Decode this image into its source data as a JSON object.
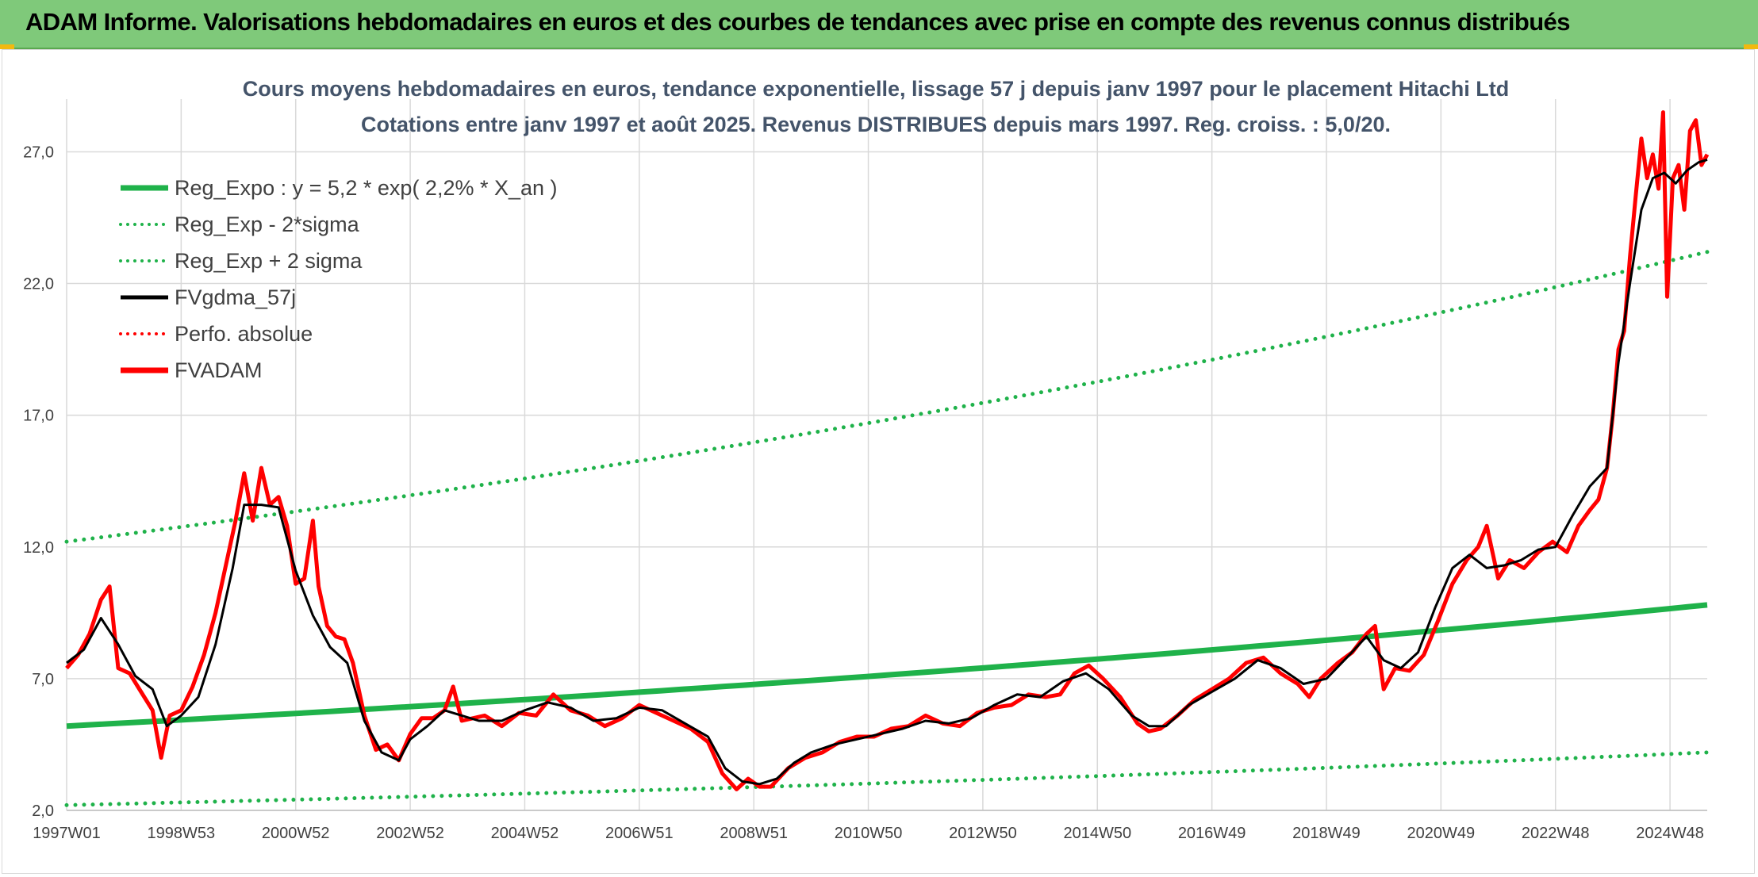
{
  "header": {
    "title": "ADAM Informe. Valorisations hebdomadaires en euros et des courbes de tendances avec prise en compte des revenus connus distribués"
  },
  "colors": {
    "banner": "#7fc97a",
    "reg_expo": "#1fb24a",
    "sigma": "#1fb24a",
    "fvgdma": "#000000",
    "perfo": "#ff0000",
    "fvadam": "#ff0000",
    "grid": "#d9d9d9"
  },
  "chart_data": {
    "type": "line",
    "title": "Cours moyens hebdomadaires en euros, tendance exponentielle, lissage 57 j depuis janv 1997 pour le placement Hitachi Ltd",
    "subtitle": "Cotations entre janv 1997 et août 2025. Revenus DISTRIBUES depuis mars 1997. Reg. croiss. : 5,0/20.",
    "xlabel": "",
    "ylabel": "",
    "x_range": [
      1997.0,
      2025.65
    ],
    "ylim": [
      2,
      29
    ],
    "y_ticks": [
      "2,0",
      "7,0",
      "12,0",
      "17,0",
      "22,0",
      "27,0"
    ],
    "y_tick_values": [
      2,
      7,
      12,
      17,
      22,
      27
    ],
    "x_ticks": [
      "1997W01",
      "1998W53",
      "2000W52",
      "2002W52",
      "2004W52",
      "2006W51",
      "2008W51",
      "2010W50",
      "2012W50",
      "2014W50",
      "2016W49",
      "2018W49",
      "2020W49",
      "2022W48",
      "2024W48"
    ],
    "x_tick_values": [
      1997.0,
      1999.0,
      2001.0,
      2003.0,
      2005.0,
      2007.0,
      2009.0,
      2011.0,
      2013.0,
      2015.0,
      2017.0,
      2019.0,
      2021.0,
      2023.0,
      2025.0
    ],
    "grid": "vertical and horizontal",
    "legend_position": "top-left",
    "legend": [
      {
        "key": "reg_expo",
        "label": "Reg_Expo : y = 5,2 * exp( 2,2% *  X_an )",
        "style": "solid-thick",
        "color": "#1fb24a"
      },
      {
        "key": "reg_minus",
        "label": "Reg_Exp - 2*sigma",
        "style": "dotted",
        "color": "#1fb24a"
      },
      {
        "key": "reg_plus",
        "label": "Reg_Exp + 2 sigma",
        "style": "dotted",
        "color": "#1fb24a"
      },
      {
        "key": "fvgdma",
        "label": "FVgdma_57j",
        "style": "solid",
        "color": "#000000"
      },
      {
        "key": "perfo",
        "label": "Perfo. absolue",
        "style": "dotted",
        "color": "#ff0000"
      },
      {
        "key": "fvadam",
        "label": "FVADAM",
        "style": "solid-thick",
        "color": "#ff0000"
      }
    ],
    "series": [
      {
        "name": "Reg_Expo : y = 5,2 * exp( 2,2% *  X_an )",
        "x": [
          1997.0,
          2025.65
        ],
        "y": [
          5.2,
          9.8
        ]
      },
      {
        "name": "Reg_Exp - 2*sigma",
        "x": [
          1997.0,
          2025.65
        ],
        "y": [
          2.2,
          4.2
        ]
      },
      {
        "name": "Reg_Exp + 2 sigma",
        "x": [
          1997.0,
          2025.65
        ],
        "y": [
          12.2,
          23.2
        ]
      },
      {
        "name": "FVgdma_57j",
        "x": [
          1997.0,
          1997.3,
          1997.6,
          1997.9,
          1998.2,
          1998.5,
          1998.75,
          1999.0,
          1999.3,
          1999.6,
          1999.9,
          2000.1,
          2000.4,
          2000.7,
          2001.0,
          2001.3,
          2001.6,
          2001.9,
          2002.2,
          2002.5,
          2002.8,
          2003.0,
          2003.3,
          2003.6,
          2003.9,
          2004.2,
          2004.6,
          2005.0,
          2005.4,
          2005.8,
          2006.2,
          2006.6,
          2007.0,
          2007.4,
          2007.8,
          2008.2,
          2008.5,
          2008.8,
          2009.1,
          2009.4,
          2009.7,
          2010.0,
          2010.4,
          2010.8,
          2011.2,
          2011.6,
          2012.0,
          2012.4,
          2012.8,
          2013.2,
          2013.6,
          2014.0,
          2014.4,
          2014.8,
          2015.2,
          2015.6,
          2015.9,
          2016.2,
          2016.6,
          2017.0,
          2017.4,
          2017.8,
          2018.2,
          2018.6,
          2019.0,
          2019.4,
          2019.7,
          2020.0,
          2020.3,
          2020.6,
          2020.9,
          2021.2,
          2021.5,
          2021.8,
          2022.1,
          2022.4,
          2022.7,
          2023.0,
          2023.3,
          2023.6,
          2023.9,
          2024.1,
          2024.3,
          2024.5,
          2024.7,
          2024.9,
          2025.1,
          2025.3,
          2025.5,
          2025.65
        ],
        "y": [
          7.6,
          8.1,
          9.3,
          8.3,
          7.1,
          6.6,
          5.2,
          5.6,
          6.3,
          8.3,
          11.2,
          13.6,
          13.6,
          13.5,
          11.1,
          9.4,
          8.2,
          7.6,
          5.4,
          4.2,
          3.9,
          4.7,
          5.2,
          5.8,
          5.6,
          5.4,
          5.4,
          5.8,
          6.1,
          5.9,
          5.4,
          5.5,
          5.9,
          5.8,
          5.3,
          4.8,
          3.6,
          3.1,
          3.0,
          3.2,
          3.8,
          4.2,
          4.5,
          4.7,
          4.9,
          5.1,
          5.4,
          5.3,
          5.5,
          6.0,
          6.4,
          6.3,
          6.9,
          7.2,
          6.6,
          5.6,
          5.2,
          5.2,
          6.0,
          6.5,
          7.0,
          7.7,
          7.4,
          6.8,
          7.0,
          7.9,
          8.6,
          7.7,
          7.4,
          8.0,
          9.7,
          11.2,
          11.7,
          11.2,
          11.3,
          11.5,
          11.9,
          12.0,
          13.2,
          14.3,
          15.0,
          19.0,
          22.0,
          24.8,
          26.0,
          26.2,
          25.8,
          26.3,
          26.6,
          26.7
        ]
      },
      {
        "name": "Perfo. absolue",
        "x": [],
        "y": []
      },
      {
        "name": "FVADAM",
        "x": [
          1997.0,
          1997.2,
          1997.4,
          1997.6,
          1997.75,
          1997.9,
          1998.1,
          1998.3,
          1998.5,
          1998.65,
          1998.8,
          1999.0,
          1999.2,
          1999.4,
          1999.6,
          1999.8,
          1999.95,
          2000.1,
          2000.25,
          2000.4,
          2000.55,
          2000.7,
          2000.85,
          2001.0,
          2001.15,
          2001.3,
          2001.4,
          2001.55,
          2001.7,
          2001.85,
          2002.0,
          2002.2,
          2002.4,
          2002.6,
          2002.8,
          2003.0,
          2003.2,
          2003.4,
          2003.6,
          2003.75,
          2003.9,
          2004.1,
          2004.3,
          2004.6,
          2004.9,
          2005.2,
          2005.5,
          2005.8,
          2006.1,
          2006.4,
          2006.7,
          2007.0,
          2007.3,
          2007.6,
          2007.9,
          2008.2,
          2008.45,
          2008.7,
          2008.9,
          2009.1,
          2009.3,
          2009.6,
          2009.9,
          2010.2,
          2010.5,
          2010.8,
          2011.1,
          2011.4,
          2011.7,
          2012.0,
          2012.3,
          2012.6,
          2012.9,
          2013.2,
          2013.5,
          2013.8,
          2014.1,
          2014.35,
          2014.6,
          2014.85,
          2015.1,
          2015.4,
          2015.7,
          2015.9,
          2016.1,
          2016.4,
          2016.7,
          2017.0,
          2017.3,
          2017.6,
          2017.9,
          2018.2,
          2018.5,
          2018.7,
          2018.9,
          2019.2,
          2019.45,
          2019.7,
          2019.85,
          2020.0,
          2020.2,
          2020.45,
          2020.7,
          2020.95,
          2021.2,
          2021.45,
          2021.65,
          2021.8,
          2022.0,
          2022.2,
          2022.45,
          2022.7,
          2022.95,
          2023.2,
          2023.4,
          2023.6,
          2023.75,
          2023.9,
          2024.0,
          2024.1,
          2024.2,
          2024.3,
          2024.4,
          2024.5,
          2024.6,
          2024.7,
          2024.8,
          2024.88,
          2024.95,
          2025.05,
          2025.15,
          2025.25,
          2025.35,
          2025.45,
          2025.55,
          2025.65
        ],
        "y": [
          7.4,
          7.9,
          8.7,
          10.0,
          10.5,
          7.4,
          7.2,
          6.5,
          5.8,
          4.0,
          5.6,
          5.8,
          6.7,
          7.9,
          9.5,
          11.5,
          13.0,
          14.8,
          13.0,
          15.0,
          13.6,
          13.9,
          12.8,
          10.6,
          10.8,
          13.0,
          10.5,
          9.0,
          8.6,
          8.5,
          7.6,
          5.6,
          4.3,
          4.5,
          3.9,
          4.9,
          5.5,
          5.5,
          5.8,
          6.7,
          5.4,
          5.5,
          5.6,
          5.2,
          5.7,
          5.6,
          6.4,
          5.8,
          5.6,
          5.2,
          5.5,
          6.0,
          5.7,
          5.4,
          5.1,
          4.6,
          3.4,
          2.8,
          3.2,
          2.9,
          2.9,
          3.6,
          4.0,
          4.2,
          4.6,
          4.8,
          4.8,
          5.1,
          5.2,
          5.6,
          5.3,
          5.2,
          5.7,
          5.9,
          6.0,
          6.4,
          6.3,
          6.4,
          7.2,
          7.5,
          7.0,
          6.3,
          5.3,
          5.0,
          5.1,
          5.6,
          6.2,
          6.6,
          7.0,
          7.6,
          7.8,
          7.2,
          6.8,
          6.3,
          7.0,
          7.6,
          8.0,
          8.7,
          9.0,
          6.6,
          7.4,
          7.3,
          7.9,
          9.2,
          10.6,
          11.5,
          12.0,
          12.8,
          10.8,
          11.5,
          11.2,
          11.8,
          12.2,
          11.8,
          12.8,
          13.4,
          13.8,
          15.0,
          17.0,
          19.5,
          20.2,
          23.0,
          25.3,
          27.5,
          26.0,
          26.9,
          25.6,
          28.5,
          21.5,
          26.0,
          26.5,
          24.8,
          27.8,
          28.2,
          26.5,
          26.9
        ]
      }
    ]
  }
}
